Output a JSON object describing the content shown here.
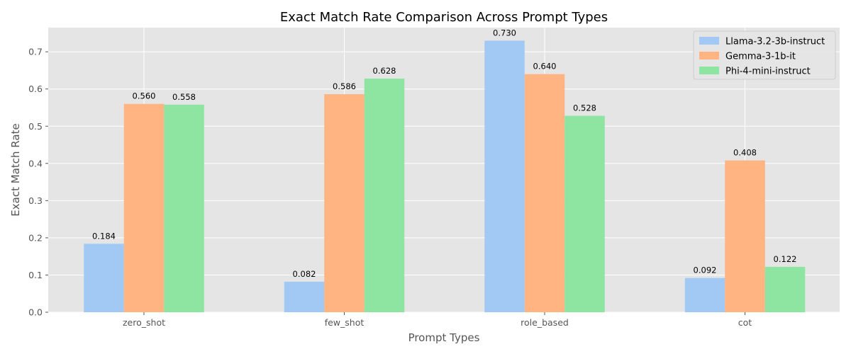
{
  "chart_data": {
    "type": "bar",
    "title": "Exact Match Rate Comparison Across Prompt Types",
    "xlabel": "Prompt Types",
    "ylabel": "Exact Match Rate",
    "ylim": [
      0,
      0.765
    ],
    "yticks": [
      0.0,
      0.1,
      0.2,
      0.3,
      0.4,
      0.5,
      0.6,
      0.7
    ],
    "ytick_labels": [
      "0.0",
      "0.1",
      "0.2",
      "0.3",
      "0.4",
      "0.5",
      "0.6",
      "0.7"
    ],
    "categories": [
      "zero_shot",
      "few_shot",
      "role_based",
      "cot"
    ],
    "series": [
      {
        "name": "Llama-3.2-3b-instruct",
        "color": "#a1c9f4",
        "values": [
          0.184,
          0.082,
          0.73,
          0.092
        ],
        "labels": [
          "0.184",
          "0.082",
          "0.730",
          "0.092"
        ]
      },
      {
        "name": "Gemma-3-1b-it",
        "color": "#ffb482",
        "values": [
          0.56,
          0.586,
          0.64,
          0.408
        ],
        "labels": [
          "0.560",
          "0.586",
          "0.640",
          "0.408"
        ]
      },
      {
        "name": "Phi-4-mini-instruct",
        "color": "#8de5a1",
        "values": [
          0.558,
          0.628,
          0.528,
          0.122
        ],
        "labels": [
          "0.558",
          "0.628",
          "0.528",
          "0.122"
        ]
      }
    ],
    "grid": true,
    "legend": "top-right",
    "background_color": "#e5e5e5",
    "grid_color": "#ffffff"
  }
}
